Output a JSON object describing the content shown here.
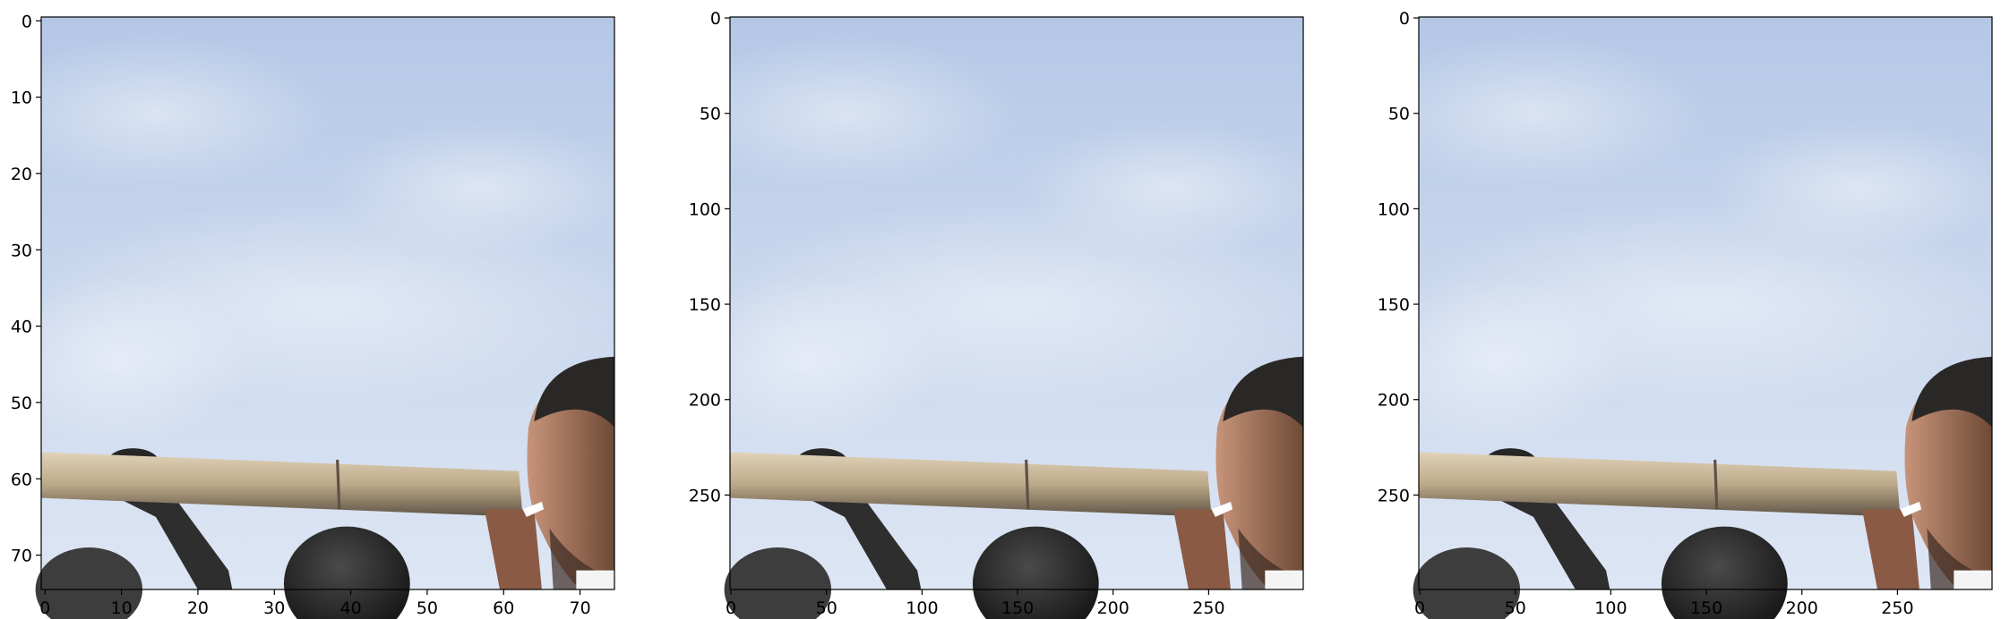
{
  "figure": {
    "panels": [
      {
        "name": "low-res-panel",
        "image": "Photo of a blue-white cloudy sky with men carrying a wooden beam on their shoulders along the bottom (pixelated, low resolution)",
        "x_range": [
          0,
          75
        ],
        "y_range": [
          75,
          0
        ],
        "x_ticks": [
          "0",
          "10",
          "20",
          "30",
          "40",
          "50",
          "60",
          "70"
        ],
        "y_ticks": [
          "0",
          "10",
          "20",
          "30",
          "40",
          "50",
          "60",
          "70"
        ]
      },
      {
        "name": "original-panel",
        "image": "Photo of a blue-white cloudy sky with men carrying a wooden beam on their shoulders along the bottom (sharp)",
        "x_range": [
          0,
          300
        ],
        "y_range": [
          300,
          0
        ],
        "x_ticks": [
          "0",
          "50",
          "100",
          "150",
          "200",
          "250"
        ],
        "y_ticks": [
          "0",
          "50",
          "100",
          "150",
          "200",
          "250"
        ]
      },
      {
        "name": "upscaled-panel",
        "image": "Photo of a blue-white cloudy sky with men carrying a wooden beam on their shoulders along the bottom (smoothed upscale)",
        "x_range": [
          0,
          300
        ],
        "y_range": [
          300,
          0
        ],
        "x_ticks": [
          "0",
          "50",
          "100",
          "150",
          "200",
          "250"
        ],
        "y_ticks": [
          "0",
          "50",
          "100",
          "150",
          "200",
          "250"
        ]
      }
    ]
  }
}
